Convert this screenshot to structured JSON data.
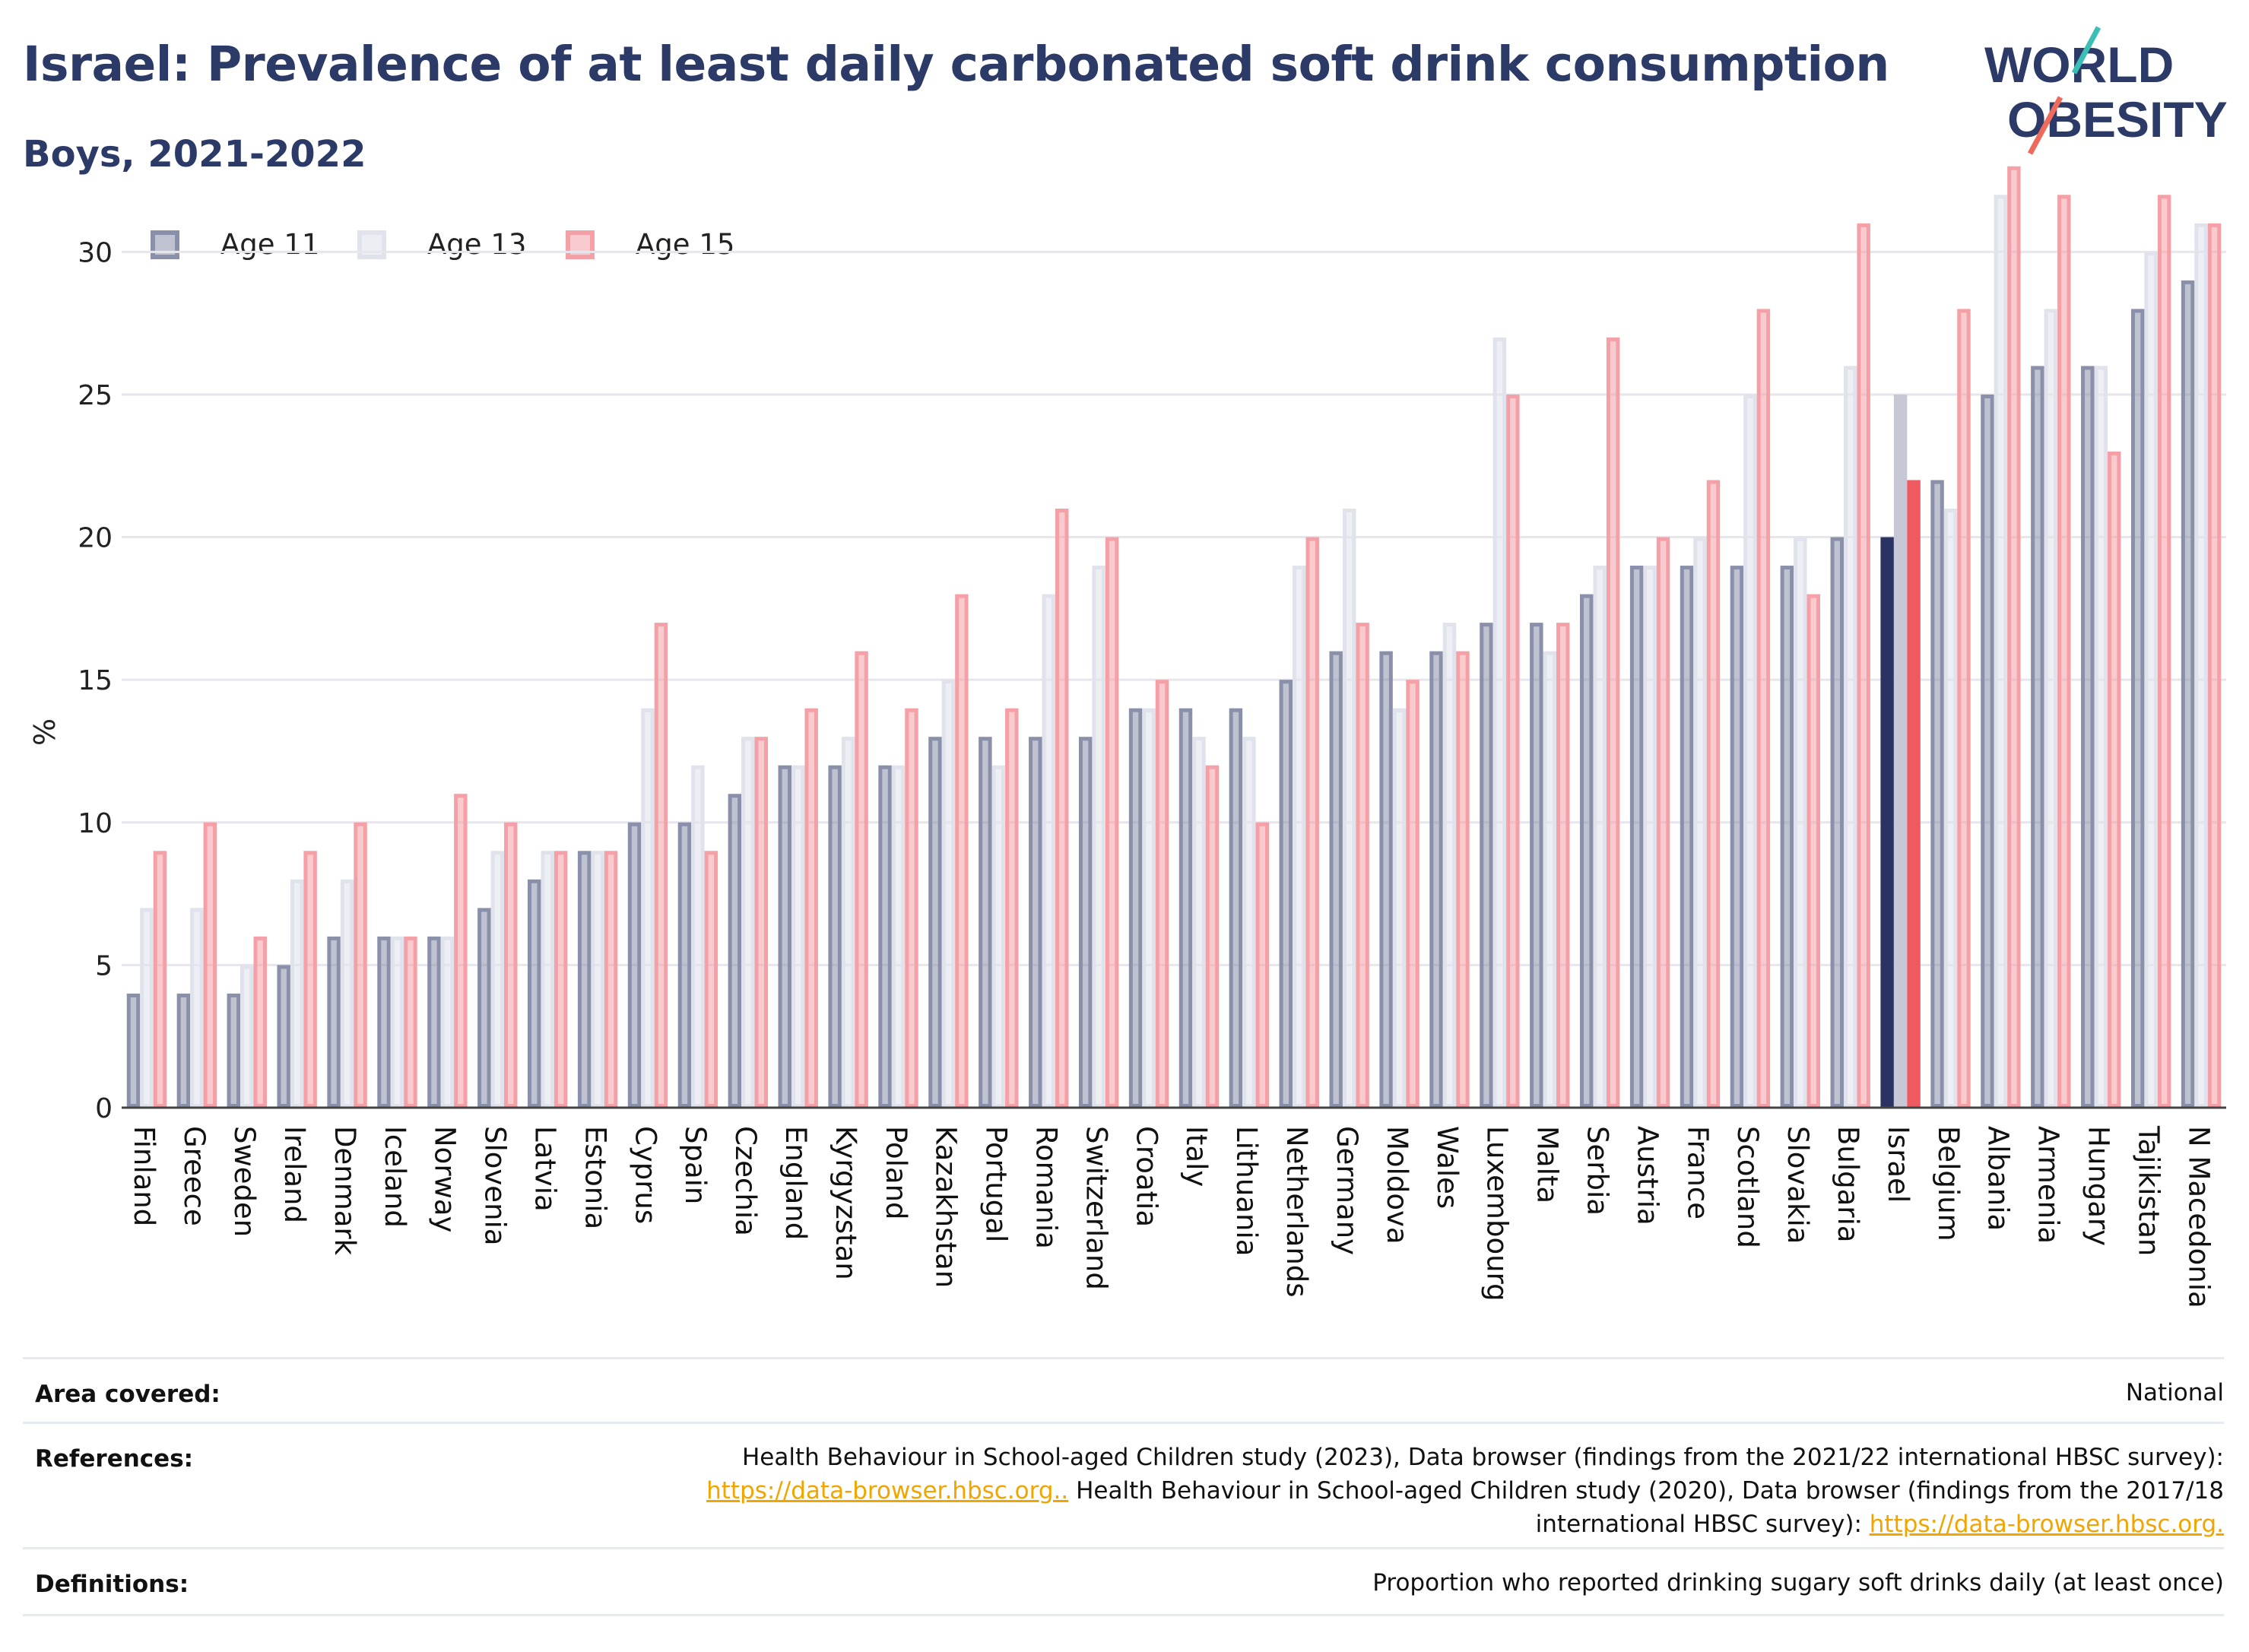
{
  "header": {
    "title": "Israel: Prevalence of at least daily carbonated soft drink consumption",
    "subtitle": "Boys, 2021-2022",
    "logo_line1": "WORLD",
    "logo_line2": "OBESITY"
  },
  "colors": {
    "title": "#2b3a67",
    "age11": "#8a90aa",
    "age13": "#e0e2ec",
    "age15": "#f4a0a6",
    "highlight_age11": "#2b3362",
    "highlight_age13": "#c6c8d6",
    "highlight_age15": "#ee5a5f",
    "grid": "#e6e6ec",
    "logo_accent1": "#3bbfb5",
    "logo_accent2": "#ee6a5a"
  },
  "chart_data": {
    "type": "bar",
    "title": "Israel: Prevalence of at least daily carbonated soft drink consumption",
    "subtitle": "Boys, 2021-2022",
    "xlabel": "",
    "ylabel": "%",
    "ylim": [
      0,
      33.5
    ],
    "yticks": [
      0,
      5,
      10,
      15,
      20,
      25,
      30
    ],
    "grid": true,
    "legend_position": "top-left",
    "highlight": "Israel",
    "categories": [
      "Finland",
      "Greece",
      "Sweden",
      "Ireland",
      "Denmark",
      "Iceland",
      "Norway",
      "Slovenia",
      "Latvia",
      "Estonia",
      "Cyprus",
      "Spain",
      "Czechia",
      "England",
      "Kyrgyzstan",
      "Poland",
      "Kazakhstan",
      "Portugal",
      "Romania",
      "Switzerland",
      "Croatia",
      "Italy",
      "Lithuania",
      "Netherlands",
      "Germany",
      "Moldova",
      "Wales",
      "Luxembourg",
      "Malta",
      "Serbia",
      "Austria",
      "France",
      "Scotland",
      "Slovakia",
      "Bulgaria",
      "Israel",
      "Belgium",
      "Albania",
      "Armenia",
      "Hungary",
      "Tajikistan",
      "N Macedonia"
    ],
    "series": [
      {
        "name": "Age 11",
        "values": [
          4,
          4,
          4,
          5,
          6,
          6,
          6,
          7,
          8,
          9,
          10,
          10,
          11,
          12,
          12,
          12,
          13,
          13,
          13,
          13,
          14,
          14,
          14,
          15,
          16,
          16,
          16,
          17,
          17,
          18,
          19,
          19,
          19,
          19,
          20,
          20,
          22,
          25,
          26,
          26,
          28,
          29
        ]
      },
      {
        "name": "Age 13",
        "values": [
          7,
          7,
          5,
          8,
          8,
          6,
          6,
          9,
          9,
          9,
          14,
          12,
          13,
          12,
          13,
          12,
          15,
          12,
          18,
          19,
          14,
          13,
          13,
          19,
          21,
          14,
          17,
          27,
          16,
          19,
          19,
          20,
          25,
          20,
          26,
          25,
          21,
          32,
          28,
          26,
          30,
          31
        ]
      },
      {
        "name": "Age 15",
        "values": [
          9,
          10,
          6,
          9,
          10,
          6,
          11,
          10,
          9,
          9,
          17,
          9,
          13,
          14,
          16,
          14,
          18,
          14,
          21,
          20,
          15,
          12,
          10,
          20,
          17,
          15,
          16,
          25,
          17,
          27,
          20,
          22,
          28,
          18,
          31,
          22,
          28,
          33,
          32,
          23,
          32,
          31
        ]
      }
    ]
  },
  "footer": {
    "area_label": "Area covered:",
    "area_value": "National",
    "refs_label": "References:",
    "refs_line1": "Health Behaviour in School-aged Children study (2023), Data browser (findings from the 2021/22 international HBSC survey):",
    "refs_link1": "https://data-browser.hbsc.org..",
    "refs_line2": " Health Behaviour in School-aged Children study (2020), Data browser (findings from the 2017/18",
    "refs_line3": "international HBSC survey): ",
    "refs_link2": "https://data-browser.hbsc.org.",
    "defs_label": "Definitions:",
    "defs_value": "Proportion who reported drinking sugary soft drinks daily (at least once)"
  }
}
